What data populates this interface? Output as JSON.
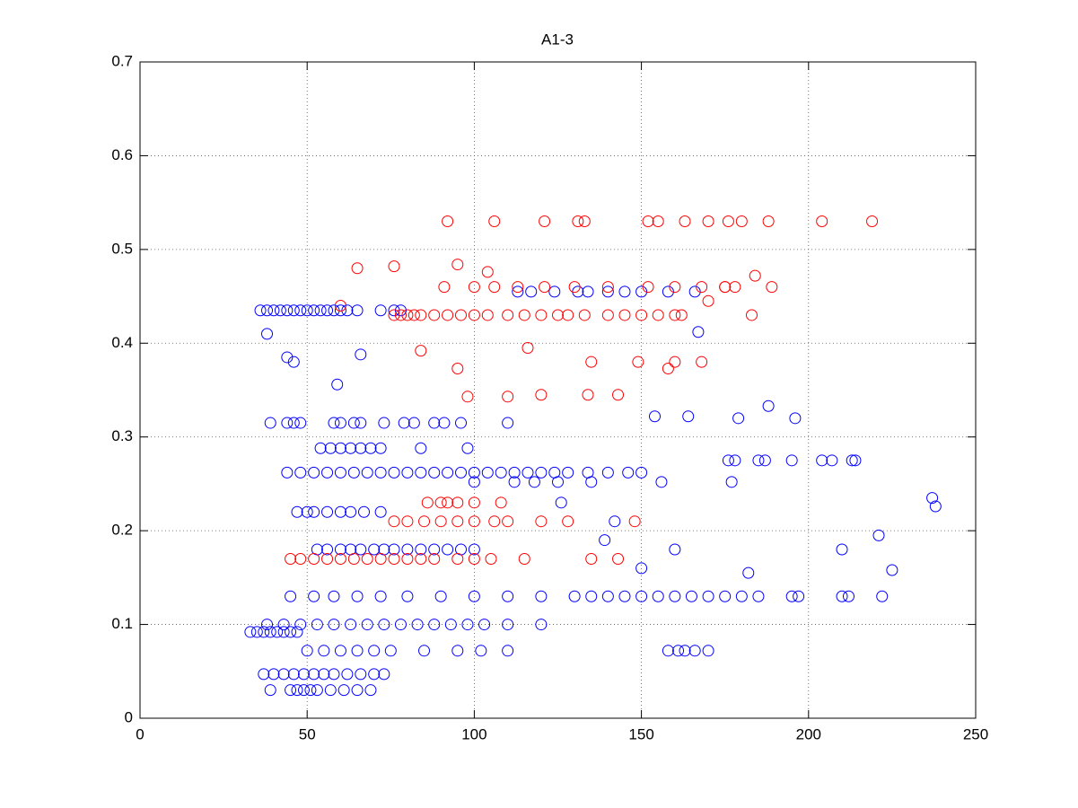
{
  "chart_data": {
    "type": "scatter",
    "title": "A1-3",
    "xlim": [
      0,
      250
    ],
    "xticks": [
      0,
      50,
      100,
      150,
      200,
      250
    ],
    "ylim": [
      0,
      0.7
    ],
    "yticks": [
      0,
      0.1,
      0.2,
      0.3,
      0.4,
      0.5,
      0.6,
      0.7
    ],
    "grid": true,
    "series": [
      {
        "color": "#0000ff",
        "x": [
          36,
          38,
          40,
          42,
          44,
          46,
          48,
          50,
          52,
          54,
          56,
          58,
          60,
          62,
          65,
          72,
          76,
          78,
          33,
          35,
          37,
          39,
          41,
          43,
          45,
          47,
          37,
          40,
          43,
          46,
          49,
          52,
          55,
          58,
          62,
          66,
          70,
          73,
          39,
          45,
          47,
          49,
          51,
          53,
          57,
          61,
          65,
          69,
          39,
          44,
          46,
          48,
          58,
          60,
          64,
          66,
          73,
          79,
          82,
          88,
          91,
          96,
          110,
          54,
          57,
          60,
          63,
          66,
          69,
          72,
          84,
          98,
          44,
          48,
          52,
          56,
          60,
          64,
          68,
          72,
          76,
          80,
          84,
          88,
          92,
          96,
          100,
          104,
          108,
          112,
          116,
          120,
          124,
          128,
          134,
          140,
          146,
          150,
          100,
          112,
          118,
          125,
          135,
          156,
          177,
          47,
          50,
          52,
          56,
          60,
          63,
          67,
          72,
          53,
          56,
          60,
          63,
          66,
          70,
          73,
          76,
          80,
          84,
          88,
          92,
          96,
          100,
          45,
          52,
          58,
          65,
          72,
          80,
          90,
          100,
          110,
          120,
          130,
          135,
          140,
          145,
          150,
          155,
          160,
          165,
          170,
          175,
          180,
          185,
          195,
          197,
          210,
          212,
          222,
          38,
          43,
          48,
          53,
          58,
          63,
          68,
          73,
          78,
          83,
          88,
          93,
          98,
          103,
          110,
          120,
          50,
          55,
          60,
          65,
          70,
          75,
          85,
          95,
          102,
          110,
          158,
          161,
          163,
          166,
          170,
          176,
          178,
          185,
          187,
          195,
          204,
          207,
          213,
          214,
          113,
          117,
          124,
          131,
          134,
          140,
          145,
          150,
          158,
          166,
          59,
          46,
          44,
          66,
          38,
          167,
          237,
          238,
          221,
          225,
          182,
          210,
          188,
          196,
          179,
          154,
          164,
          150,
          160,
          139,
          126,
          142
        ],
        "values": [
          0.435,
          0.435,
          0.435,
          0.435,
          0.435,
          0.435,
          0.435,
          0.435,
          0.435,
          0.435,
          0.435,
          0.435,
          0.435,
          0.435,
          0.435,
          0.435,
          0.435,
          0.435,
          0.092,
          0.092,
          0.092,
          0.092,
          0.092,
          0.092,
          0.092,
          0.092,
          0.047,
          0.047,
          0.047,
          0.047,
          0.047,
          0.047,
          0.047,
          0.047,
          0.047,
          0.047,
          0.047,
          0.047,
          0.03,
          0.03,
          0.03,
          0.03,
          0.03,
          0.03,
          0.03,
          0.03,
          0.03,
          0.03,
          0.315,
          0.315,
          0.315,
          0.315,
          0.315,
          0.315,
          0.315,
          0.315,
          0.315,
          0.315,
          0.315,
          0.315,
          0.315,
          0.315,
          0.315,
          0.288,
          0.288,
          0.288,
          0.288,
          0.288,
          0.288,
          0.288,
          0.288,
          0.288,
          0.262,
          0.262,
          0.262,
          0.262,
          0.262,
          0.262,
          0.262,
          0.262,
          0.262,
          0.262,
          0.262,
          0.262,
          0.262,
          0.262,
          0.262,
          0.262,
          0.262,
          0.262,
          0.262,
          0.262,
          0.262,
          0.262,
          0.262,
          0.262,
          0.262,
          0.262,
          0.252,
          0.252,
          0.252,
          0.252,
          0.252,
          0.252,
          0.252,
          0.22,
          0.22,
          0.22,
          0.22,
          0.22,
          0.22,
          0.22,
          0.22,
          0.18,
          0.18,
          0.18,
          0.18,
          0.18,
          0.18,
          0.18,
          0.18,
          0.18,
          0.18,
          0.18,
          0.18,
          0.18,
          0.18,
          0.13,
          0.13,
          0.13,
          0.13,
          0.13,
          0.13,
          0.13,
          0.13,
          0.13,
          0.13,
          0.13,
          0.13,
          0.13,
          0.13,
          0.13,
          0.13,
          0.13,
          0.13,
          0.13,
          0.13,
          0.13,
          0.13,
          0.13,
          0.13,
          0.13,
          0.13,
          0.13,
          0.1,
          0.1,
          0.1,
          0.1,
          0.1,
          0.1,
          0.1,
          0.1,
          0.1,
          0.1,
          0.1,
          0.1,
          0.1,
          0.1,
          0.1,
          0.1,
          0.072,
          0.072,
          0.072,
          0.072,
          0.072,
          0.072,
          0.072,
          0.072,
          0.072,
          0.072,
          0.072,
          0.072,
          0.072,
          0.072,
          0.072,
          0.275,
          0.275,
          0.275,
          0.275,
          0.275,
          0.275,
          0.275,
          0.275,
          0.275,
          0.455,
          0.455,
          0.455,
          0.455,
          0.455,
          0.455,
          0.455,
          0.455,
          0.455,
          0.455,
          0.356,
          0.38,
          0.385,
          0.388,
          0.41,
          0.412,
          0.235,
          0.226,
          0.195,
          0.158,
          0.155,
          0.18,
          0.333,
          0.32,
          0.32,
          0.322,
          0.322,
          0.16,
          0.18,
          0.19,
          0.23,
          0.21
        ]
      },
      {
        "color": "#ff0000",
        "x": [
          76,
          78,
          80,
          82,
          84,
          88,
          92,
          96,
          100,
          104,
          110,
          115,
          120,
          125,
          128,
          133,
          140,
          145,
          150,
          155,
          160,
          162,
          183,
          91,
          100,
          106,
          113,
          121,
          130,
          140,
          152,
          160,
          168,
          175,
          178,
          189,
          92,
          106,
          121,
          131,
          133,
          152,
          155,
          163,
          170,
          180,
          188,
          204,
          219,
          176,
          45,
          48,
          52,
          56,
          60,
          64,
          68,
          72,
          76,
          80,
          84,
          88,
          95,
          100,
          105,
          115,
          135,
          143,
          76,
          80,
          85,
          90,
          95,
          100,
          106,
          110,
          120,
          128,
          148,
          86,
          90,
          92,
          95,
          100,
          108,
          65,
          76,
          95,
          104,
          95,
          84,
          98,
          110,
          120,
          134,
          143,
          149,
          160,
          168,
          158,
          116,
          135,
          170,
          175,
          184,
          60
        ],
        "values": [
          0.43,
          0.43,
          0.43,
          0.43,
          0.43,
          0.43,
          0.43,
          0.43,
          0.43,
          0.43,
          0.43,
          0.43,
          0.43,
          0.43,
          0.43,
          0.43,
          0.43,
          0.43,
          0.43,
          0.43,
          0.43,
          0.43,
          0.43,
          0.46,
          0.46,
          0.46,
          0.46,
          0.46,
          0.46,
          0.46,
          0.46,
          0.46,
          0.46,
          0.46,
          0.46,
          0.46,
          0.53,
          0.53,
          0.53,
          0.53,
          0.53,
          0.53,
          0.53,
          0.53,
          0.53,
          0.53,
          0.53,
          0.53,
          0.53,
          0.53,
          0.17,
          0.17,
          0.17,
          0.17,
          0.17,
          0.17,
          0.17,
          0.17,
          0.17,
          0.17,
          0.17,
          0.17,
          0.17,
          0.17,
          0.17,
          0.17,
          0.17,
          0.17,
          0.21,
          0.21,
          0.21,
          0.21,
          0.21,
          0.21,
          0.21,
          0.21,
          0.21,
          0.21,
          0.21,
          0.23,
          0.23,
          0.23,
          0.23,
          0.23,
          0.23,
          0.48,
          0.482,
          0.484,
          0.476,
          0.373,
          0.392,
          0.343,
          0.343,
          0.345,
          0.345,
          0.345,
          0.38,
          0.38,
          0.38,
          0.373,
          0.395,
          0.38,
          0.445,
          0.46,
          0.472,
          0.44
        ]
      }
    ]
  }
}
